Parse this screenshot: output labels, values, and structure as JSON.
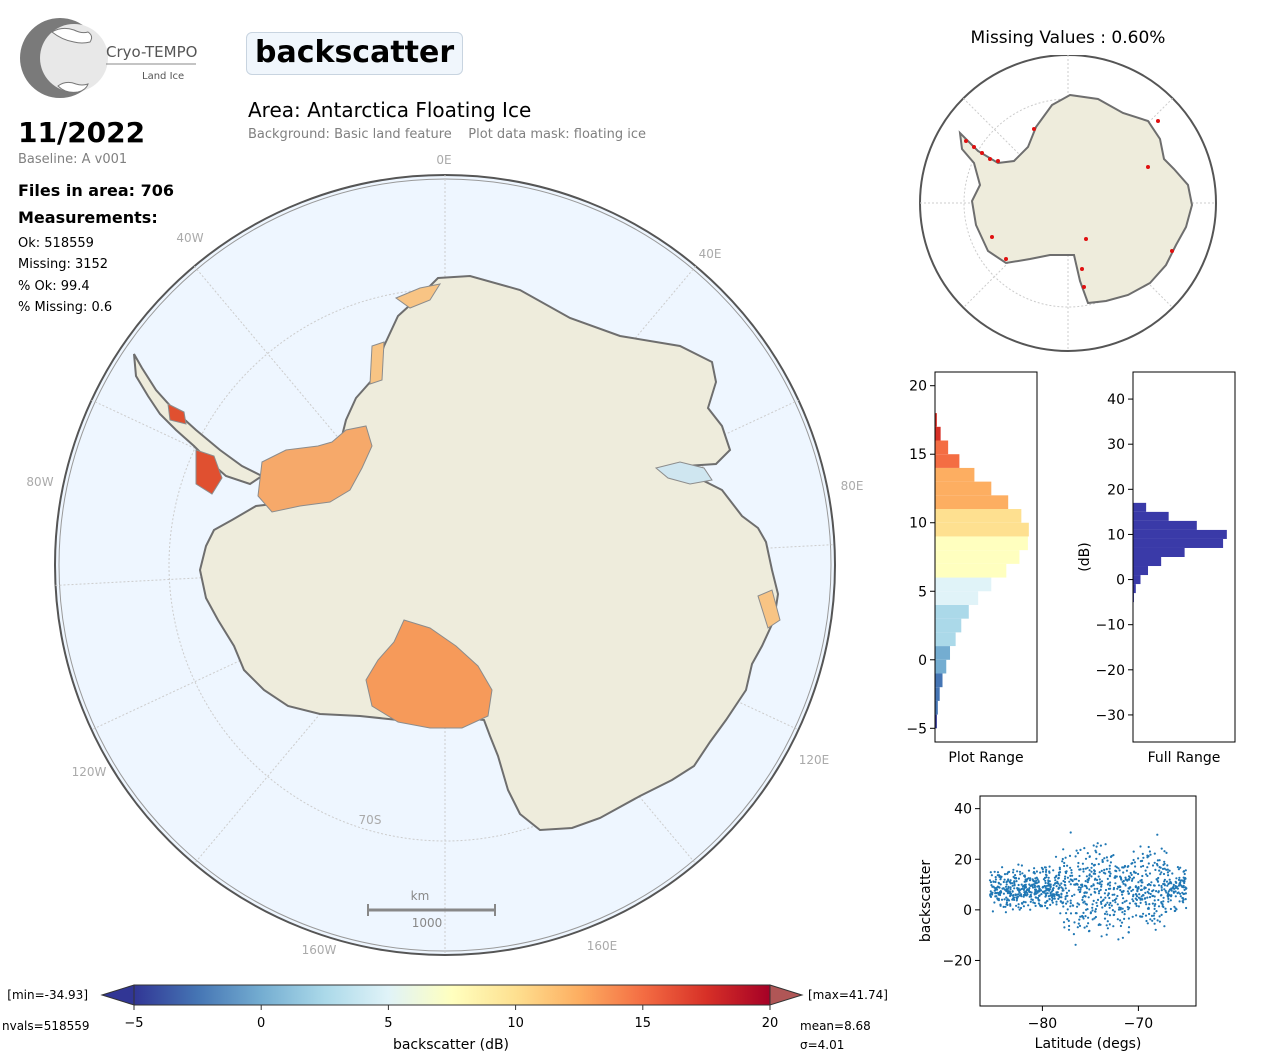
{
  "header": {
    "logo_name": "Cryo-TEMPO",
    "logo_sub": "Land Ice",
    "variable": "backscatter",
    "area": "Area: Antarctica Floating Ice",
    "background": "Background: Basic land feature",
    "mask": "Plot data mask: floating ice",
    "date": "11/2022",
    "baseline": "Baseline: A v001",
    "files": "Files in area: 706",
    "measurements_label": "Measurements:",
    "ok": "Ok: 518559",
    "missing": "Missing: 3152",
    "pct_ok": "% Ok: 99.4",
    "pct_missing": "% Missing: 0.6"
  },
  "map": {
    "lon_labels": [
      "0E",
      "40E",
      "80E",
      "120E",
      "160E",
      "160W",
      "120W",
      "80W",
      "40W"
    ],
    "lat_label": "70S",
    "scale_unit": "km",
    "scale_value": "1000"
  },
  "missing_map": {
    "title": "Missing Values : 0.60%"
  },
  "colorbar": {
    "min_label": "[min=-34.93]",
    "max_label": "[max=41.74]",
    "nvals": "nvals=518559",
    "mean": "mean=8.68",
    "sigma": "σ=4.01",
    "label": "backscatter (dB)",
    "range": [
      -5,
      20
    ],
    "ticks": [
      -5,
      0,
      5,
      10,
      15,
      20
    ],
    "colors": [
      "#313695",
      "#4575b4",
      "#74add1",
      "#abd9e9",
      "#e0f3f8",
      "#ffffbf",
      "#fee090",
      "#fdae61",
      "#f46d43",
      "#d73027",
      "#a50026"
    ]
  },
  "chart_data": [
    {
      "type": "bar",
      "orientation": "horizontal",
      "xlabel": "Plot Range",
      "ylabel": "",
      "ylim": [
        -6,
        21
      ],
      "yticks": [
        -5,
        0,
        5,
        10,
        15,
        20
      ],
      "bins": [
        -4.5,
        -3.5,
        -2.5,
        -1.5,
        -0.5,
        0.5,
        1.5,
        2.5,
        3.5,
        4.5,
        5.5,
        6.5,
        7.5,
        8.5,
        9.5,
        10.5,
        11.5,
        12.5,
        13.5,
        14.5,
        15.5,
        16.5,
        17.5
      ],
      "values": [
        0.02,
        0.03,
        0.05,
        0.08,
        0.12,
        0.16,
        0.22,
        0.28,
        0.36,
        0.46,
        0.6,
        0.76,
        0.9,
        0.99,
        1.0,
        0.92,
        0.78,
        0.6,
        0.42,
        0.26,
        0.14,
        0.06,
        0.02
      ]
    },
    {
      "type": "bar",
      "orientation": "horizontal",
      "xlabel": "Full Range",
      "ylabel": "(dB)",
      "ylim": [
        -36,
        46
      ],
      "yticks": [
        -30,
        -20,
        -10,
        0,
        10,
        20,
        30,
        40
      ],
      "color": "#3a3aa8",
      "bins": [
        -4,
        -2,
        0,
        2,
        4,
        6,
        8,
        10,
        12,
        14,
        16
      ],
      "values": [
        0.01,
        0.03,
        0.08,
        0.16,
        0.3,
        0.55,
        0.96,
        1.0,
        0.68,
        0.38,
        0.14
      ]
    },
    {
      "type": "scatter",
      "xlabel": "Latitude (degs)",
      "ylabel": "backscatter",
      "xlim": [
        -86.5,
        -64
      ],
      "ylim": [
        -38,
        45
      ],
      "xticks": [
        -80,
        -70
      ],
      "yticks": [
        -20,
        0,
        20,
        40
      ],
      "color": "#1f77b4",
      "x_range": [
        -85.5,
        -65
      ],
      "y_center": 8.68,
      "y_min": -34.93,
      "y_max": 41.74
    }
  ]
}
